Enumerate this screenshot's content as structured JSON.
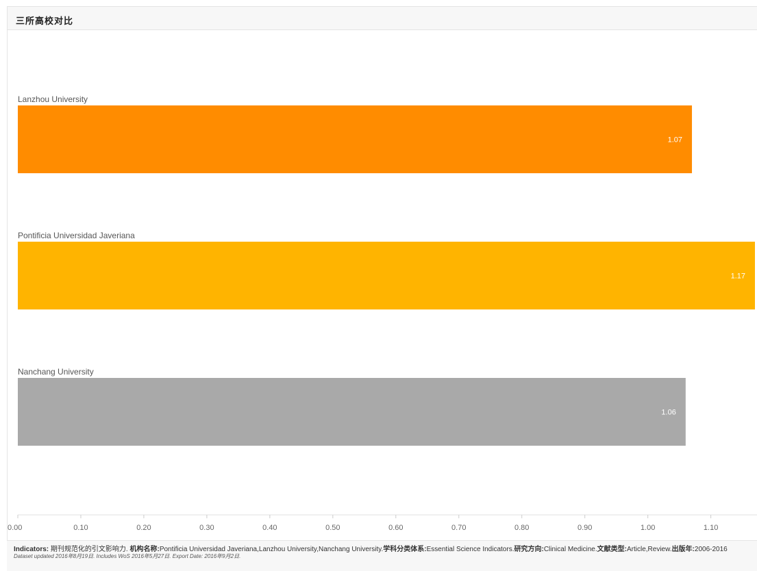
{
  "panel": {
    "title": "三所高校对比"
  },
  "chart_data": {
    "type": "bar",
    "orientation": "horizontal",
    "categories": [
      "Lanzhou University",
      "Pontificia Universidad Javeriana",
      "Nanchang University"
    ],
    "values": [
      1.07,
      1.17,
      1.06
    ],
    "value_labels": [
      "1.07",
      "1.17",
      "1.06"
    ],
    "colors": [
      "#ff8c00",
      "#ffb400",
      "#a9a9a9"
    ],
    "xlim": [
      0,
      1.17
    ],
    "ticks": [
      0.0,
      0.1,
      0.2,
      0.3,
      0.4,
      0.5,
      0.6,
      0.7,
      0.8,
      0.9,
      1.0,
      1.1
    ],
    "tick_labels": [
      "0.00",
      "0.10",
      "0.20",
      "0.30",
      "0.40",
      "0.50",
      "0.60",
      "0.70",
      "0.80",
      "0.90",
      "1.00",
      "1.10"
    ],
    "grid": false,
    "legend": "none"
  },
  "footer": {
    "indicators_label": "Indicators:",
    "indicators_value": " 期刊规范化的引文影响力. ",
    "institution_label": "机构名称:",
    "institution_value": "Pontificia Universidad Javeriana,Lanzhou University,Nanchang University.",
    "schema_label": "学科分类体系:",
    "schema_value": "Essential Science Indicators.",
    "research_label": "研究方向:",
    "research_value": "Clinical Medicine.",
    "doctype_label": "文献类型:",
    "doctype_value": "Article,Review.",
    "year_label": "出版年:",
    "year_value": "2006-2016",
    "note": "Dataset updated 2016年8月19日. Includes WoS 2016年5月27日. Export Date: 2016年9月2日."
  }
}
